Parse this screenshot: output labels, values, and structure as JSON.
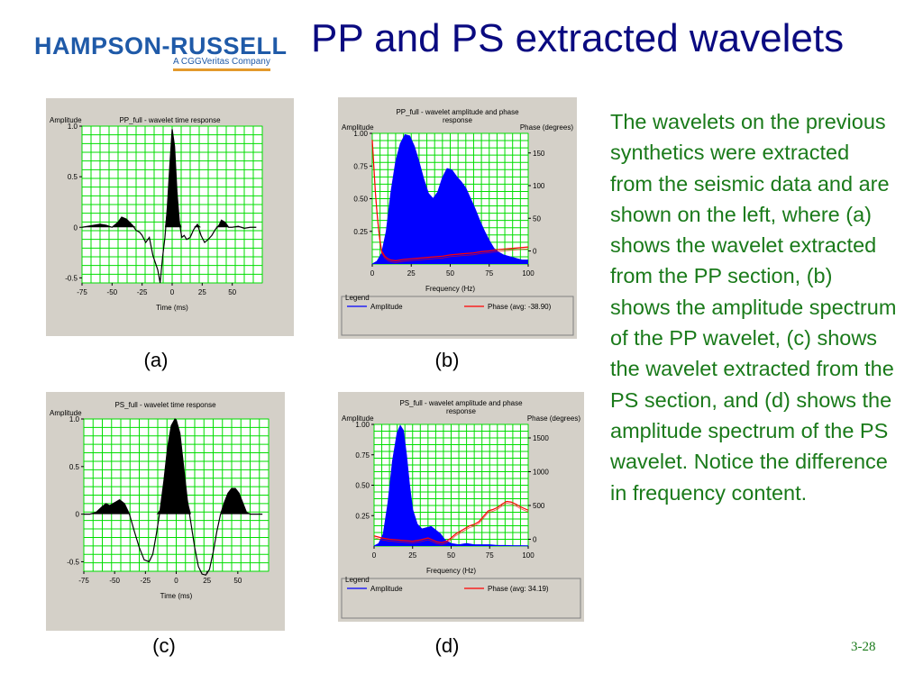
{
  "logo": {
    "name": "HAMPSON-RUSSELL",
    "tagline": "A CGGVeritas Company"
  },
  "slide": {
    "title": "PP and PS extracted wavelets",
    "number": "3-28"
  },
  "description": "The wavelets on the previous synthetics were extracted from the seismic data and are shown on the left, where (a) shows the wavelet extracted from the PP section, (b) shows the amplitude spectrum of the PP wavelet, (c) shows the wavelet extracted from the PS section, and (d) shows the amplitude spectrum of the PS wavelet. Notice the difference in frequency content.",
  "captions": {
    "a": "(a)",
    "b": "(b)",
    "c": "(c)",
    "d": "(d)"
  },
  "chart_data": [
    {
      "id": "a",
      "type": "line",
      "title": "PP_full - wavelet time response",
      "xlabel": "Time (ms)",
      "ylabel": "Amplitude",
      "xlim": [
        -75,
        75
      ],
      "ylim": [
        -0.55,
        1.0
      ],
      "xticks": [
        -75,
        -50,
        -25,
        0,
        25,
        50
      ],
      "yticks": [
        1.0,
        0.5,
        0,
        -0.5
      ],
      "ytick_labels": [
        "1.0",
        "0.5",
        "0",
        "-0.5"
      ],
      "grid": true,
      "fill": "positive",
      "series": [
        {
          "color": "#000000",
          "x": [
            -75,
            -70,
            -65,
            -60,
            -55,
            -50,
            -45,
            -42,
            -38,
            -33,
            -30,
            -27,
            -25,
            -22,
            -19,
            -16,
            -12,
            -10,
            -8,
            -6,
            -4,
            -2,
            0,
            2,
            4,
            6,
            8,
            10,
            12,
            15,
            18,
            21,
            24,
            27,
            30,
            33,
            36,
            39,
            41,
            44,
            47,
            50,
            55,
            60,
            65,
            70
          ],
          "y": [
            0,
            0.01,
            0.02,
            0.03,
            0.02,
            0,
            0.05,
            0.1,
            0.08,
            0.02,
            -0.03,
            -0.05,
            -0.08,
            -0.15,
            -0.1,
            -0.28,
            -0.42,
            -0.55,
            -0.3,
            -0.1,
            0.2,
            0.6,
            0.97,
            0.8,
            0.35,
            0.05,
            -0.1,
            -0.08,
            -0.12,
            -0.1,
            -0.02,
            0.03,
            -0.08,
            -0.15,
            -0.12,
            -0.08,
            -0.02,
            0.02,
            0.07,
            0.05,
            0.0,
            0.0,
            0.01,
            -0.01,
            0.0,
            0.0
          ]
        }
      ]
    },
    {
      "id": "b",
      "type": "area",
      "title": "PP_full - wavelet amplitude and phase response",
      "xlabel": "Frequency (Hz)",
      "ylabel": "Amplitude",
      "y2label": "Phase (degrees)",
      "xlim": [
        0,
        100
      ],
      "ylim": [
        0,
        1.0
      ],
      "y2lim": [
        -20,
        180
      ],
      "xticks": [
        0,
        25,
        50,
        75,
        100
      ],
      "yticks": [
        1.0,
        0.75,
        0.5,
        0.25
      ],
      "ytick_labels": [
        "1.00",
        "0.75",
        "0.50",
        "0.25"
      ],
      "y2ticks": [
        150,
        100,
        50,
        0
      ],
      "grid": true,
      "legend_title": "Legend",
      "series": [
        {
          "name": "Amplitude",
          "axis": "left",
          "color": "#0000ff",
          "fill": "#0000ff",
          "x": [
            0,
            3,
            6,
            9,
            12,
            15,
            18,
            21,
            24,
            27,
            30,
            33,
            36,
            39,
            42,
            45,
            48,
            51,
            54,
            57,
            60,
            63,
            66,
            69,
            72,
            75,
            78,
            81,
            84,
            87,
            90,
            93,
            96,
            100
          ],
          "y": [
            0,
            0.02,
            0.08,
            0.25,
            0.55,
            0.78,
            0.92,
            0.99,
            0.98,
            0.9,
            0.78,
            0.65,
            0.54,
            0.5,
            0.55,
            0.66,
            0.73,
            0.72,
            0.67,
            0.63,
            0.58,
            0.5,
            0.42,
            0.33,
            0.25,
            0.18,
            0.12,
            0.09,
            0.07,
            0.06,
            0.05,
            0.04,
            0.03,
            0.03
          ]
        },
        {
          "name": "Phase (avg: -38.90)",
          "axis": "right",
          "color": "#ff0000",
          "x": [
            0,
            1,
            2,
            3,
            4,
            5,
            6,
            8,
            10,
            12,
            15,
            20,
            25,
            30,
            35,
            40,
            45,
            50,
            55,
            60,
            65,
            70,
            75,
            80,
            85,
            90,
            95,
            100
          ],
          "y": [
            170,
            130,
            90,
            60,
            35,
            15,
            0,
            -8,
            -12,
            -14,
            -15,
            -13,
            -12,
            -11,
            -10,
            -9,
            -8,
            -6,
            -5,
            -4,
            -3,
            -1,
            0,
            2,
            3,
            4,
            5,
            6
          ]
        }
      ]
    },
    {
      "id": "c",
      "type": "line",
      "title": "PS_full - wavelet time response",
      "xlabel": "Time (ms)",
      "ylabel": "Amplitude",
      "xlim": [
        -75,
        75
      ],
      "ylim": [
        -0.6,
        1.0
      ],
      "xticks": [
        -75,
        -50,
        -25,
        0,
        25,
        50
      ],
      "yticks": [
        1.0,
        0.5,
        0,
        -0.5
      ],
      "ytick_labels": [
        "1.0",
        "0.5",
        "0",
        "-0.5"
      ],
      "grid": true,
      "fill": "positive",
      "series": [
        {
          "color": "#000000",
          "x": [
            -75,
            -70,
            -65,
            -60,
            -57,
            -54,
            -50,
            -46,
            -42,
            -38,
            -34,
            -30,
            -26,
            -22,
            -19,
            -16,
            -13,
            -10,
            -7,
            -4,
            -1,
            0,
            3,
            6,
            9,
            12,
            15,
            18,
            21,
            24,
            27,
            30,
            33,
            36,
            39,
            42,
            45,
            48,
            51,
            54,
            57,
            60,
            65,
            70
          ],
          "y": [
            0,
            0,
            0.02,
            0.08,
            0.11,
            0.09,
            0.12,
            0.15,
            0.11,
            0,
            -0.18,
            -0.35,
            -0.48,
            -0.5,
            -0.42,
            -0.2,
            0.05,
            0.35,
            0.7,
            0.93,
            1.0,
            0.99,
            0.85,
            0.5,
            0.15,
            -0.1,
            -0.35,
            -0.55,
            -0.63,
            -0.64,
            -0.58,
            -0.4,
            -0.18,
            0,
            0.12,
            0.22,
            0.27,
            0.27,
            0.22,
            0.12,
            0.02,
            0,
            0,
            0
          ]
        }
      ]
    },
    {
      "id": "d",
      "type": "area",
      "title": "PS_full - wavelet amplitude and phase response",
      "xlabel": "Frequency (Hz)",
      "ylabel": "Amplitude",
      "y2label": "Phase (degrees)",
      "xlim": [
        0,
        100
      ],
      "ylim": [
        0,
        1.0
      ],
      "y2lim": [
        -100,
        1700
      ],
      "xticks": [
        0,
        25,
        50,
        75,
        100
      ],
      "yticks": [
        1.0,
        0.75,
        0.5,
        0.25
      ],
      "ytick_labels": [
        "1.00",
        "0.75",
        "0.50",
        "0.25"
      ],
      "y2ticks": [
        1500,
        1000,
        500,
        0
      ],
      "grid": true,
      "legend_title": "Legend",
      "series": [
        {
          "name": "Amplitude",
          "axis": "left",
          "color": "#0000ff",
          "fill": "#0000ff",
          "x": [
            0,
            3,
            6,
            9,
            12,
            15,
            17,
            19,
            21,
            23,
            25,
            28,
            31,
            34,
            37,
            40,
            43,
            46,
            50,
            55,
            60,
            65,
            70,
            75,
            80,
            85,
            90,
            95,
            100
          ],
          "y": [
            0,
            0.02,
            0.1,
            0.35,
            0.7,
            0.93,
            0.99,
            0.95,
            0.75,
            0.5,
            0.3,
            0.18,
            0.14,
            0.15,
            0.16,
            0.13,
            0.1,
            0.05,
            0.02,
            0.01,
            0.02,
            0.01,
            0.01,
            0.01,
            0.005,
            0.005,
            0.003,
            0.003,
            0.002
          ]
        },
        {
          "name": "Phase (avg: 34.19)",
          "axis": "right",
          "color": "#ff0000",
          "x": [
            0,
            5,
            10,
            15,
            20,
            25,
            30,
            35,
            38,
            41,
            44,
            47,
            50,
            53,
            56,
            59,
            62,
            65,
            68,
            71,
            74,
            77,
            80,
            83,
            86,
            89,
            92,
            95,
            100
          ],
          "y": [
            50,
            20,
            0,
            -10,
            -20,
            -30,
            -10,
            20,
            -10,
            -40,
            -50,
            -30,
            20,
            80,
            120,
            160,
            200,
            220,
            260,
            340,
            420,
            440,
            470,
            520,
            560,
            550,
            520,
            480,
            430
          ]
        }
      ]
    }
  ]
}
